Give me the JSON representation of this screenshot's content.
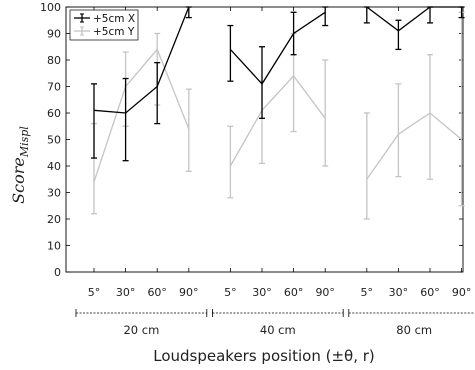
{
  "chart_data": {
    "type": "line",
    "title": "",
    "xlabel": "Loudspeakers position (±θ, r)",
    "ylabel_main": "Score",
    "ylabel_sub": "Mispl",
    "ylim": [
      0,
      100
    ],
    "yticks": [
      0,
      10,
      20,
      30,
      40,
      50,
      60,
      70,
      80,
      90,
      100
    ],
    "legend_position": "top-left",
    "grid": false,
    "groups": [
      {
        "label": "20 cm",
        "categories": [
          "5°",
          "30°",
          "60°",
          "90°"
        ]
      },
      {
        "label": "40 cm",
        "categories": [
          "5°",
          "30°",
          "60°",
          "90°"
        ]
      },
      {
        "label": "80 cm",
        "categories": [
          "5°",
          "30°",
          "60°",
          "90°"
        ]
      }
    ],
    "series": [
      {
        "name": "+5cm X",
        "color": "#000000",
        "values": [
          [
            61,
            60,
            70,
            100
          ],
          [
            84,
            71,
            90,
            98
          ],
          [
            100,
            91,
            100,
            100
          ]
        ],
        "err_low": [
          [
            43,
            42,
            56,
            96
          ],
          [
            72,
            58,
            82,
            93
          ],
          [
            94,
            84,
            94,
            96
          ]
        ],
        "err_high": [
          [
            71,
            73,
            79,
            100
          ],
          [
            93,
            85,
            98,
            100
          ],
          [
            100,
            95,
            100,
            100
          ]
        ]
      },
      {
        "name": "+5cm Y",
        "color": "#c4c4c4",
        "values": [
          [
            34,
            70,
            84,
            54
          ],
          [
            40,
            61,
            74,
            58
          ],
          [
            35,
            52,
            60,
            50
          ]
        ],
        "err_low": [
          [
            22,
            55,
            63,
            38
          ],
          [
            28,
            41,
            53,
            40
          ],
          [
            20,
            36,
            35,
            25
          ]
        ],
        "err_high": [
          [
            56,
            83,
            90,
            69
          ],
          [
            55,
            72,
            90,
            80
          ],
          [
            60,
            71,
            82,
            98
          ]
        ]
      }
    ]
  }
}
